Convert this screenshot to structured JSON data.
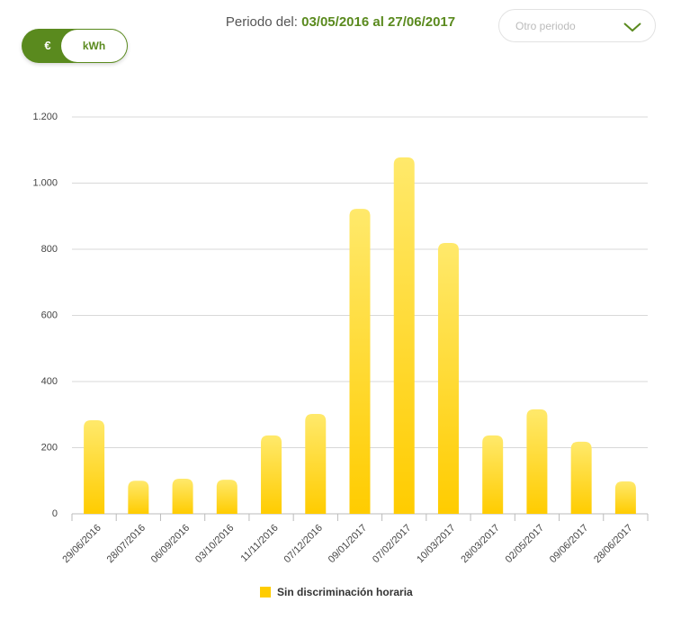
{
  "header": {
    "period_label": "Periodo del:",
    "period_value": "03/05/2016 al 27/06/2017",
    "dropdown": "Otro periodo"
  },
  "toggle": [
    "€",
    "kWh"
  ],
  "chart_data": {
    "type": "bar",
    "categories": [
      "29/06/2016",
      "28/07/2016",
      "06/09/2016",
      "03/10/2016",
      "11/11/2016",
      "07/12/2016",
      "09/01/2017",
      "07/02/2017",
      "10/03/2017",
      "28/03/2017",
      "02/05/2017",
      "09/06/2017",
      "28/06/2017"
    ],
    "series": [
      {
        "name": "Sin discriminación horaria",
        "color": "#ffcc00",
        "values": [
          283,
          100,
          106,
          103,
          237,
          302,
          922,
          1078,
          819,
          237,
          316,
          218,
          98
        ]
      }
    ],
    "ylim": [
      0,
      1200
    ],
    "yticks": [
      0,
      200,
      400,
      600,
      800,
      {
        "value": 1000,
        "label": "1.000"
      },
      {
        "value": 1200,
        "label": "1.200"
      }
    ],
    "grid": true
  }
}
